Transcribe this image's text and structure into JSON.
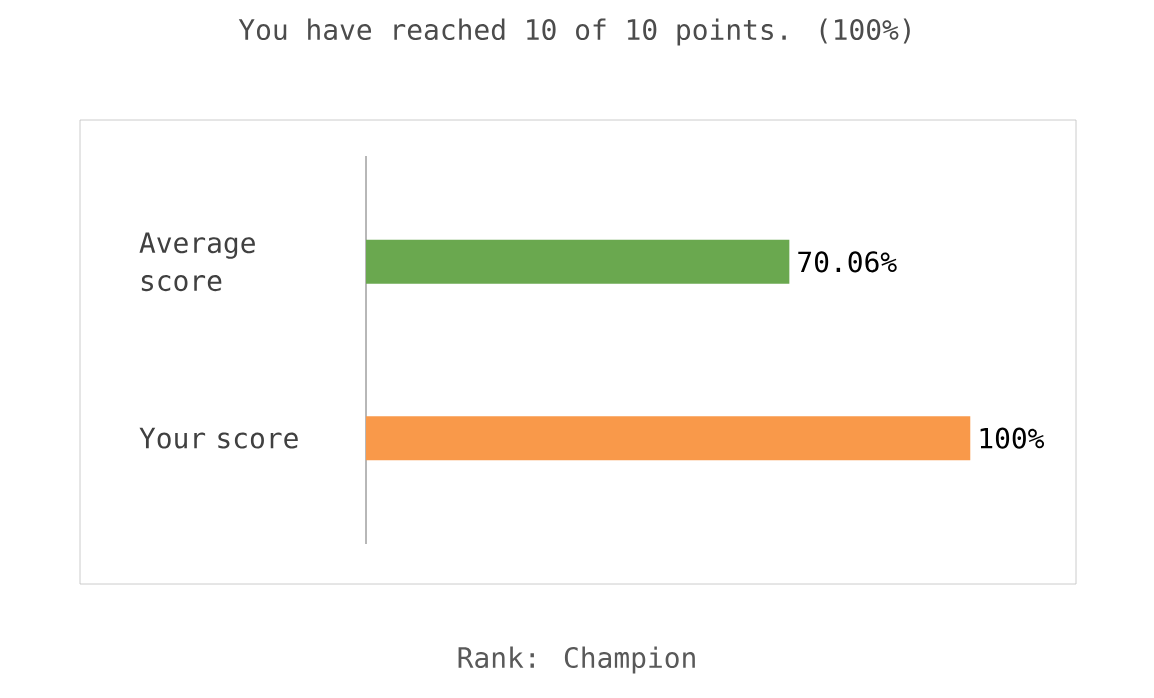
{
  "chart_data": {
    "type": "bar",
    "orientation": "horizontal",
    "title": "You have reached 10 of 10 points. (100%)",
    "categories": [
      "Average score",
      "Your score"
    ],
    "values": [
      70.06,
      100
    ],
    "colors": [
      "#6aa84f",
      "#f9994a"
    ],
    "value_labels": [
      "70.06%",
      "100%"
    ],
    "annotations": [
      "Rank: Champion"
    ]
  }
}
